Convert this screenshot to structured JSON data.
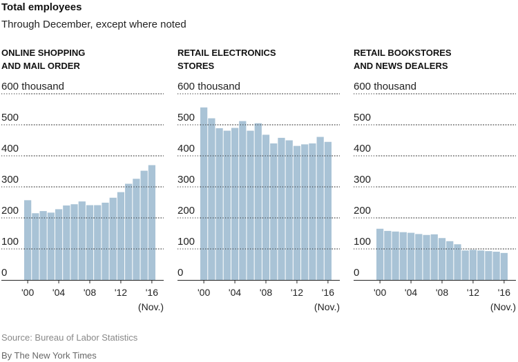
{
  "header": {
    "title": "Total employees",
    "subtitle": "Through December, except where noted"
  },
  "footer": {
    "source": "Source: Bureau of Labor Statistics",
    "credit": "By The New York Times"
  },
  "colors": {
    "bar": "#a9c3d6"
  },
  "chart_data": [
    {
      "type": "bar",
      "title": "ONLINE SHOPPING AND MAIL ORDER",
      "title_lines": [
        "ONLINE SHOPPING",
        "AND MAIL ORDER"
      ],
      "y_unit": "thousand",
      "ylim": [
        0,
        600
      ],
      "yticks": [
        0,
        100,
        200,
        300,
        400,
        500,
        600
      ],
      "ytick_labels": [
        "0",
        "100",
        "200",
        "300",
        "400",
        "500",
        "600 thousand"
      ],
      "categories": [
        2000,
        2001,
        2002,
        2003,
        2004,
        2005,
        2006,
        2007,
        2008,
        2009,
        2010,
        2011,
        2012,
        2013,
        2014,
        2015,
        2016
      ],
      "xtick_labels": [
        "'00",
        "'04",
        "'08",
        "'12",
        "'16"
      ],
      "xtick_years": [
        2000,
        2004,
        2008,
        2012,
        2016
      ],
      "note": "(Nov.)",
      "values": [
        257,
        215,
        222,
        217,
        228,
        240,
        244,
        253,
        241,
        241,
        249,
        265,
        283,
        310,
        326,
        352,
        370
      ],
      "grid": true
    },
    {
      "type": "bar",
      "title": "RETAIL ELECTRONICS STORES",
      "title_lines": [
        "RETAIL ELECTRONICS",
        "STORES"
      ],
      "y_unit": "thousand",
      "ylim": [
        0,
        600
      ],
      "yticks": [
        0,
        100,
        200,
        300,
        400,
        500,
        600
      ],
      "ytick_labels": [
        "0",
        "100",
        "200",
        "300",
        "400",
        "500",
        "600 thousand"
      ],
      "categories": [
        2000,
        2001,
        2002,
        2003,
        2004,
        2005,
        2006,
        2007,
        2008,
        2009,
        2010,
        2011,
        2012,
        2013,
        2014,
        2015,
        2016
      ],
      "xtick_labels": [
        "'00",
        "'04",
        "'08",
        "'12",
        "'16"
      ],
      "xtick_years": [
        2000,
        2004,
        2008,
        2012,
        2016
      ],
      "note": "(Nov.)",
      "values": [
        556,
        521,
        489,
        481,
        490,
        512,
        481,
        505,
        468,
        440,
        458,
        450,
        432,
        437,
        440,
        461,
        445
      ],
      "grid": true
    },
    {
      "type": "bar",
      "title": "RETAIL BOOKSTORES AND NEWS DEALERS",
      "title_lines": [
        "RETAIL BOOKSTORES",
        "AND NEWS DEALERS"
      ],
      "y_unit": "thousand",
      "ylim": [
        0,
        600
      ],
      "yticks": [
        0,
        100,
        200,
        300,
        400,
        500,
        600
      ],
      "ytick_labels": [
        "0",
        "100",
        "200",
        "300",
        "400",
        "500",
        "600 thousand"
      ],
      "categories": [
        2000,
        2001,
        2002,
        2003,
        2004,
        2005,
        2006,
        2007,
        2008,
        2009,
        2010,
        2011,
        2012,
        2013,
        2014,
        2015,
        2016
      ],
      "xtick_labels": [
        "'00",
        "'04",
        "'08",
        "'12",
        "'16"
      ],
      "xtick_years": [
        2000,
        2004,
        2008,
        2012,
        2016
      ],
      "note": "(Nov.)",
      "values": [
        165,
        158,
        156,
        154,
        152,
        148,
        145,
        147,
        135,
        125,
        115,
        95,
        97,
        95,
        93,
        91,
        87
      ],
      "grid": true
    }
  ]
}
